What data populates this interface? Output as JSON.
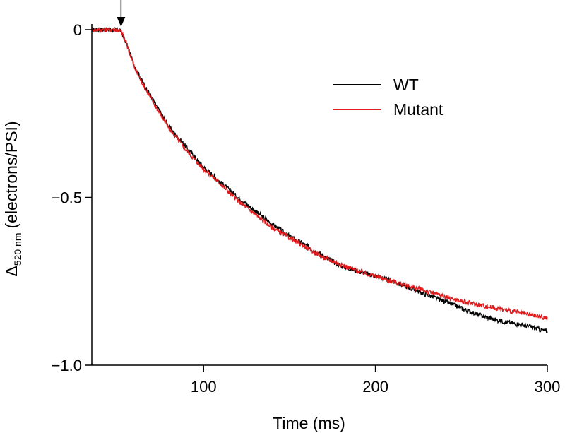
{
  "chart_data": {
    "type": "line",
    "xlabel": "Time (ms)",
    "ylabel": {
      "symbol": "Δ",
      "subscript": "520 nm",
      "text": "(electrons/PSI)"
    },
    "xlim": [
      35,
      300
    ],
    "ylim": [
      -1.0,
      0.0
    ],
    "xticks": [
      100,
      200,
      300
    ],
    "yticks": [
      0,
      -0.5,
      -1.0
    ],
    "ytick_labels": [
      "0",
      "−0.5",
      "−1.0"
    ],
    "grid": false,
    "legend_position": "top-right",
    "annotation": "downward-arrow",
    "annotation_x": 52,
    "series": [
      {
        "name": "WT",
        "color": "#000000",
        "x": [
          35,
          40,
          45,
          50,
          52,
          55,
          60,
          65,
          70,
          80,
          90,
          100,
          110,
          120,
          130,
          140,
          150,
          160,
          170,
          180,
          190,
          200,
          210,
          220,
          230,
          240,
          250,
          260,
          270,
          280,
          290,
          300
        ],
        "y": [
          0.0,
          0.0,
          0.0,
          0.0,
          -0.005,
          -0.04,
          -0.11,
          -0.16,
          -0.205,
          -0.29,
          -0.35,
          -0.41,
          -0.455,
          -0.5,
          -0.54,
          -0.58,
          -0.615,
          -0.645,
          -0.675,
          -0.705,
          -0.72,
          -0.735,
          -0.75,
          -0.77,
          -0.79,
          -0.81,
          -0.83,
          -0.85,
          -0.865,
          -0.875,
          -0.885,
          -0.9
        ]
      },
      {
        "name": "Mutant",
        "color": "#e31a1c",
        "x": [
          35,
          40,
          45,
          50,
          52,
          55,
          60,
          65,
          70,
          80,
          90,
          100,
          110,
          120,
          130,
          140,
          150,
          160,
          170,
          180,
          190,
          200,
          210,
          220,
          230,
          240,
          250,
          260,
          270,
          280,
          290,
          300
        ],
        "y": [
          0.0,
          0.0,
          0.0,
          0.0,
          -0.005,
          -0.04,
          -0.115,
          -0.165,
          -0.21,
          -0.295,
          -0.36,
          -0.415,
          -0.46,
          -0.51,
          -0.55,
          -0.59,
          -0.62,
          -0.65,
          -0.68,
          -0.7,
          -0.72,
          -0.735,
          -0.75,
          -0.765,
          -0.78,
          -0.795,
          -0.81,
          -0.82,
          -0.83,
          -0.84,
          -0.85,
          -0.86
        ]
      }
    ]
  }
}
